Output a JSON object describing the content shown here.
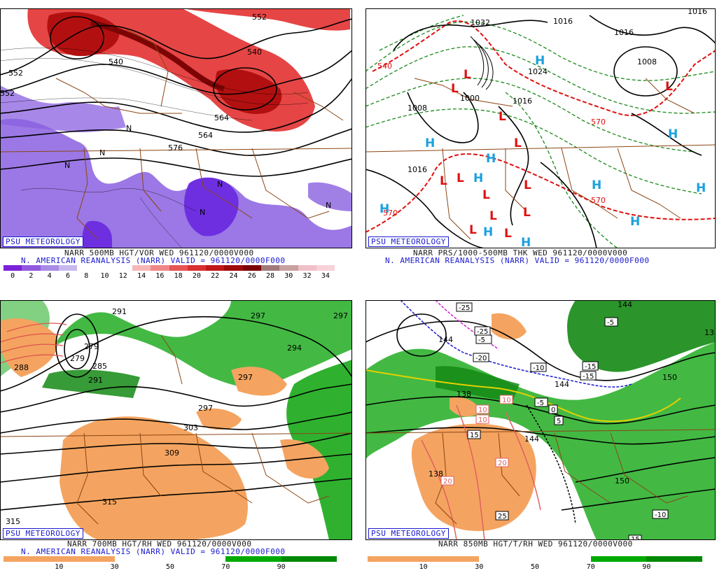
{
  "branding": "PSU METEOROLOGY",
  "reanalysis_line": "N. AMERICAN REANALYSIS (NARR) VALID = 961120/0000F000",
  "panels": {
    "top_left": {
      "title": "NARR 500MB HGT/VOR WED 961120/0000V000",
      "colorbar_ticks": [
        "0",
        "2",
        "4",
        "6",
        "8",
        "10",
        "12",
        "14",
        "16",
        "18",
        "20",
        "22",
        "24",
        "26",
        "28",
        "30",
        "32",
        "34"
      ],
      "colorbar_colors": [
        "#7a22d8",
        "#9158e0",
        "#a98ae6",
        "#c7b9ee",
        "#ffffff",
        "#ffffff",
        "#ffffff",
        "#f8b7b7",
        "#f08787",
        "#e65555",
        "#d93030",
        "#c01818",
        "#a00b0b",
        "#7d0404",
        "#a07a7a",
        "#c8a0a0",
        "#f0c0c8",
        "#f7d2d8"
      ],
      "contour_labels": [
        "552",
        "540",
        "564",
        "576",
        "552",
        "564",
        "540",
        "552",
        "N",
        "N",
        "N",
        "N",
        "N",
        "N"
      ]
    },
    "top_right": {
      "title": "NARR PRS/1000-500MB THK WED 961120/0000V000",
      "contour_labels": [
        "1032",
        "1016",
        "1016",
        "1008",
        "1008",
        "1000",
        "1016",
        "1016",
        "1016",
        "1024",
        "540",
        "570",
        "570",
        "570"
      ],
      "highs": [
        "H",
        "H",
        "H",
        "H",
        "H",
        "H",
        "H",
        "H",
        "H",
        "H",
        "H"
      ],
      "lows": [
        "L",
        "L",
        "L",
        "L",
        "L",
        "L",
        "L",
        "L",
        "L",
        "L",
        "L",
        "L",
        "L"
      ]
    },
    "bottom_left": {
      "title": "NARR 700MB HGT/RH WED 961120/0000V000",
      "colorbar_ticks": [
        "10",
        "30",
        "50",
        "70",
        "90"
      ],
      "colorbar_colors": [
        "#f4a460",
        "#f4a460",
        "#ffffff",
        "#ffffff",
        "#00aa00",
        "#008800"
      ],
      "contour_labels": [
        "291",
        "297",
        "297",
        "279",
        "279",
        "285",
        "291",
        "294",
        "297",
        "303",
        "309",
        "315",
        "315",
        "297",
        "288"
      ]
    },
    "bottom_right": {
      "title": "NARR 850MB HGT/T/RH WED 961120/0000V000",
      "colorbar_ticks": [
        "10",
        "30",
        "50",
        "70",
        "90"
      ],
      "colorbar_colors": [
        "#f4a460",
        "#f4a460",
        "#ffffff",
        "#ffffff",
        "#00aa00",
        "#008800"
      ],
      "temp_labels": [
        "-25",
        "-25",
        "-20",
        "-10",
        "-15",
        "-5",
        "-5",
        "0",
        "5",
        "10",
        "10",
        "10",
        "15",
        "15",
        "20",
        "20",
        "25",
        "-15",
        "-5",
        "-10"
      ],
      "height_labels": [
        "144",
        "138",
        "144",
        "144",
        "150",
        "150",
        "138",
        "13",
        "144"
      ]
    }
  },
  "colors": {
    "frame": "#000000",
    "caption_blue": "#1a1ad0",
    "borders": "#8b4513",
    "contour": "#000000",
    "high_marker": "#1aa0e0",
    "low_marker": "#e01010",
    "vorticity_pos": "#d82020",
    "vorticity_neg": "#7a30d8",
    "rh_moist": "#2fb12f",
    "rh_dry": "#f4a460"
  }
}
